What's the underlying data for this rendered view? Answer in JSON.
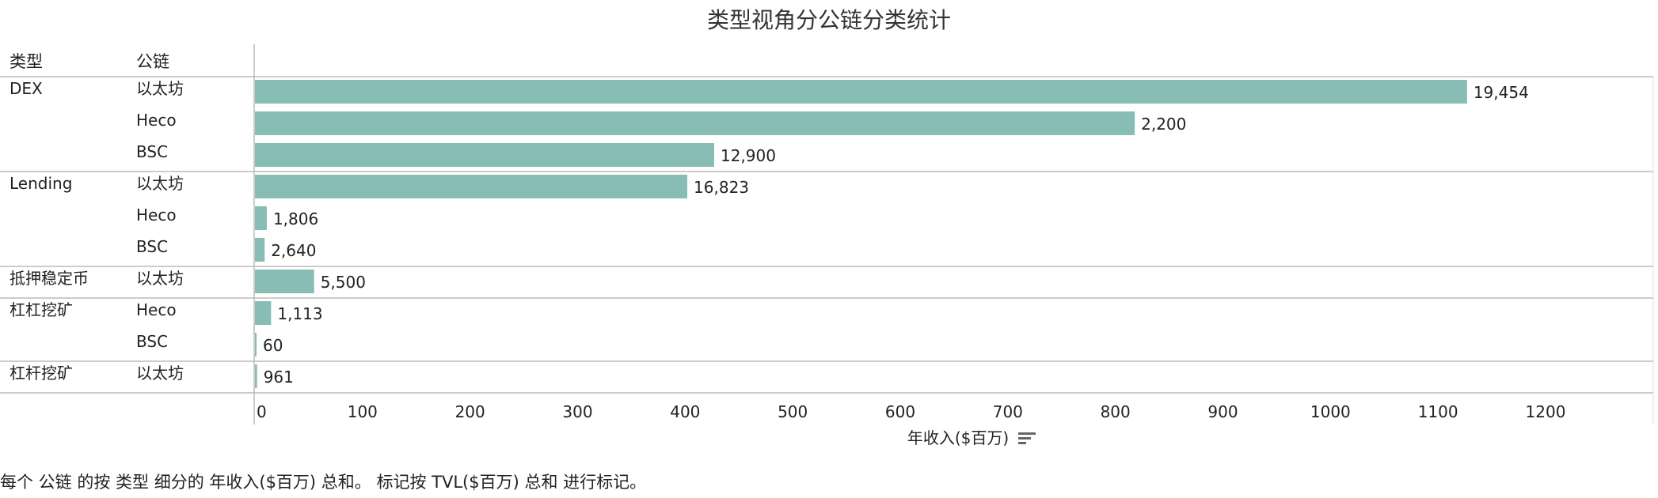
{
  "chart_data": {
    "type": "bar",
    "orientation": "horizontal",
    "title": "类型视角分公链分类统计",
    "row_headers": [
      "类型",
      "公链"
    ],
    "xlabel": "年收入($百万)",
    "xlim": [
      0,
      1240
    ],
    "xticks": [
      "0",
      "100",
      "200",
      "300",
      "400",
      "500",
      "600",
      "700",
      "800",
      "900",
      "1000",
      "1100",
      "1200"
    ],
    "xtick_values": [
      0,
      100,
      200,
      300,
      400,
      500,
      600,
      700,
      800,
      900,
      1000,
      1100,
      1200
    ],
    "bar_color": "#88bdb5",
    "groups": [
      {
        "category": "DEX",
        "rows": [
          {
            "chain": "以太坊",
            "value": 1127,
            "label": "19,454"
          },
          {
            "chain": "Heco",
            "value": 818,
            "label": "2,200"
          },
          {
            "chain": "BSC",
            "value": 427,
            "label": "12,900"
          }
        ]
      },
      {
        "category": "Lending",
        "rows": [
          {
            "chain": "以太坊",
            "value": 402,
            "label": "16,823"
          },
          {
            "chain": "Heco",
            "value": 11,
            "label": "1,806"
          },
          {
            "chain": "BSC",
            "value": 9,
            "label": "2,640"
          }
        ]
      },
      {
        "category": "抵押稳定币",
        "rows": [
          {
            "chain": "以太坊",
            "value": 55,
            "label": "5,500"
          }
        ]
      },
      {
        "category": "杠杠挖矿",
        "rows": [
          {
            "chain": "Heco",
            "value": 15,
            "label": "1,113"
          },
          {
            "chain": "BSC",
            "value": 0.6,
            "label": "60"
          }
        ]
      },
      {
        "category": "杠杆挖矿",
        "rows": [
          {
            "chain": "以太坊",
            "value": 2,
            "label": "961"
          }
        ]
      }
    ],
    "footnote": "每个 公链 的按 类型 细分的 年收入($百万) 总和。 标记按 TVL($百万) 总和 进行标记。"
  }
}
